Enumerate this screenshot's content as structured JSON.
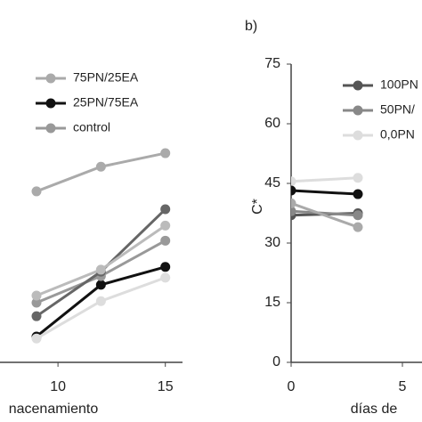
{
  "chart_data": [
    {
      "type": "line",
      "xlabel": "nacenamiento",
      "xlim": [
        7.3,
        15.8
      ],
      "ylim": [
        0,
        75
      ],
      "xticks": [
        10,
        15
      ],
      "series": [
        {
          "name": "75PN/25EA",
          "color": "#aaaaaa",
          "x": [
            9,
            12,
            15
          ],
          "values": [
            43,
            49.2,
            52.6
          ]
        },
        {
          "name": "25PN/75EA",
          "color": "#111111",
          "x": [
            9,
            12,
            15
          ],
          "values": [
            6.5,
            19.5,
            24
          ]
        },
        {
          "name": "control",
          "color": "#999999",
          "x": [
            9,
            12,
            15
          ],
          "values": [
            15,
            21.7,
            30.6
          ]
        },
        {
          "name": null,
          "color": "#666666",
          "x": [
            9,
            12,
            15
          ],
          "values": [
            11.6,
            22.8,
            38.5
          ]
        },
        {
          "name": null,
          "color": "#bbbbbb",
          "x": [
            9,
            12,
            15
          ],
          "values": [
            16.8,
            23.3,
            34.4
          ]
        },
        {
          "name": null,
          "color": "#dddddd",
          "x": [
            9,
            12,
            15
          ],
          "values": [
            6,
            15.4,
            21.3
          ]
        }
      ]
    },
    {
      "type": "line",
      "title": "b)",
      "xlabel": "días de",
      "ylabel": "C*",
      "xlim": [
        0,
        5.88
      ],
      "ylim": [
        0,
        75
      ],
      "xticks": [
        0,
        5
      ],
      "yticks": [
        0,
        15,
        30,
        45,
        60,
        75
      ],
      "series": [
        {
          "name": "100PN",
          "color": "#555555",
          "x": [
            0,
            3
          ],
          "values": [
            37,
            37.5
          ]
        },
        {
          "name": "50PN/",
          "color": "#888888",
          "x": [
            0,
            3
          ],
          "values": [
            38,
            37
          ]
        },
        {
          "name": "0,0PN",
          "color": "#dddddd",
          "x": [
            0,
            3
          ],
          "values": [
            45.5,
            46.4
          ]
        },
        {
          "name": null,
          "color": "#111111",
          "x": [
            0,
            3
          ],
          "values": [
            43.2,
            42.3
          ]
        },
        {
          "name": null,
          "color": "#aaaaaa",
          "x": [
            0,
            3
          ],
          "values": [
            40,
            34
          ]
        }
      ]
    }
  ]
}
